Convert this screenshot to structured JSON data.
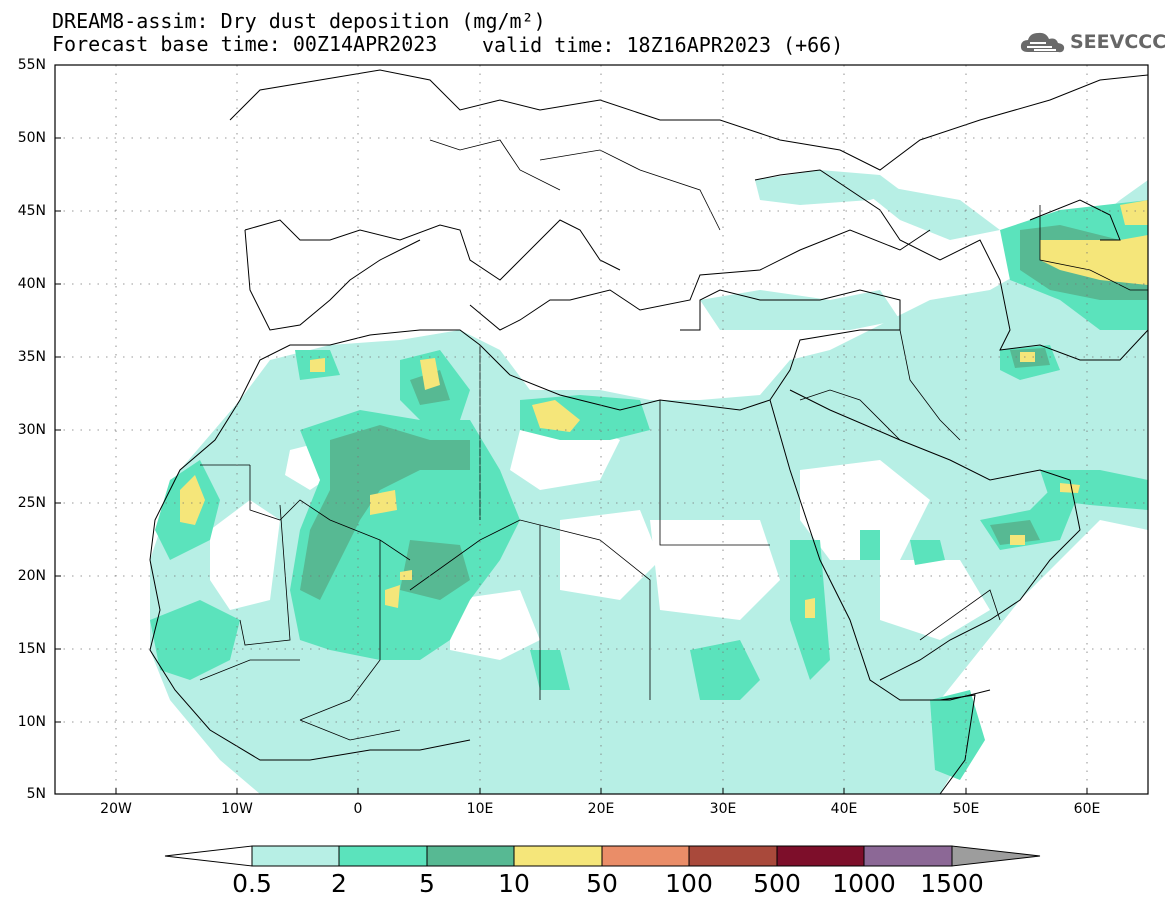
{
  "header": {
    "title_line1": "DREAM8-assim: Dry dust deposition (mg/m²)",
    "title_line2_left": "Forecast base time: 00Z14APR2023",
    "title_line2_right": "valid time: 18Z16APR2023 (+66)"
  },
  "logo": {
    "text": "SEEVCCC",
    "icon": "cloud-icon",
    "color": "#666666"
  },
  "axes": {
    "lat_labels": [
      "55N",
      "50N",
      "45N",
      "40N",
      "35N",
      "30N",
      "25N",
      "20N",
      "15N",
      "10N",
      "5N"
    ],
    "lon_labels": [
      "20W",
      "10W",
      "0",
      "10E",
      "20E",
      "30E",
      "40E",
      "50E",
      "60E"
    ],
    "lat_range": [
      5,
      55
    ],
    "lon_range": [
      -25,
      65
    ]
  },
  "colorbar": {
    "labels": [
      "0.5",
      "2",
      "5",
      "10",
      "50",
      "100",
      "500",
      "1000",
      "1500"
    ],
    "colors": [
      "#b7efe5",
      "#5be3bc",
      "#57b993",
      "#f5e67a",
      "#ea8d68",
      "#a9493b",
      "#7d0e2a",
      "#8c6896",
      "#9d9d9d"
    ],
    "under_color": "#ffffff"
  },
  "map": {
    "background": "#ffffff",
    "grid": true,
    "border_color": "#000000"
  }
}
